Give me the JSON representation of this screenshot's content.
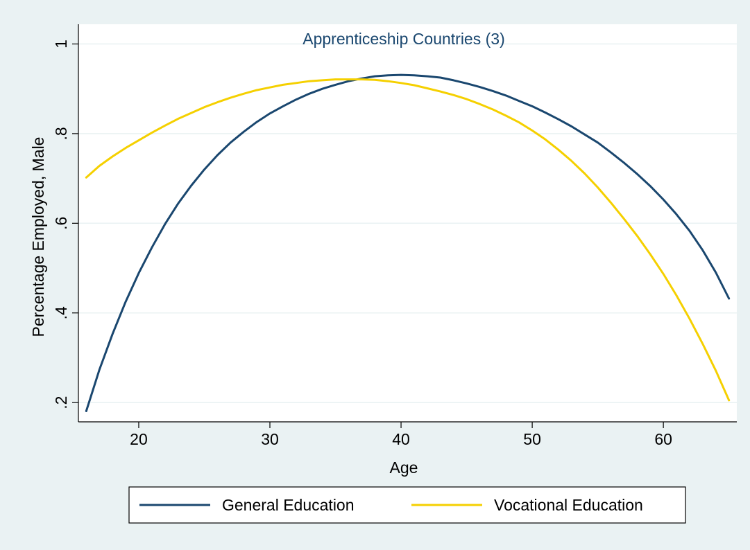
{
  "colors": {
    "background": "#eaf2f3",
    "plot_background": "#ffffff",
    "grid": "#eaf2f3",
    "axis": "#000000",
    "general": "#1a476f",
    "vocational": "#f5d000"
  },
  "chart_data": {
    "type": "line",
    "title": "Apprenticeship Countries (3)",
    "xlabel": "Age",
    "ylabel": "Percentage Employed, Male",
    "xlim": [
      15.4,
      65.6
    ],
    "ylim": [
      0.157,
      1.044
    ],
    "xticks": [
      20,
      30,
      40,
      50,
      60
    ],
    "xtick_labels": [
      "20",
      "30",
      "40",
      "50",
      "60"
    ],
    "yticks": [
      0.2,
      0.4,
      0.6,
      0.8,
      1.0
    ],
    "ytick_labels": [
      ".2",
      ".4",
      ".6",
      ".8",
      "1"
    ],
    "grid": true,
    "legend_position": "bottom",
    "x": [
      16,
      17,
      18,
      19,
      20,
      21,
      22,
      23,
      24,
      25,
      26,
      27,
      28,
      29,
      30,
      31,
      32,
      33,
      34,
      35,
      36,
      37,
      38,
      39,
      40,
      41,
      42,
      43,
      44,
      45,
      46,
      47,
      48,
      49,
      50,
      51,
      52,
      53,
      54,
      55,
      56,
      57,
      58,
      59,
      60,
      61,
      62,
      63,
      64,
      65
    ],
    "series": [
      {
        "name": "General Education",
        "color": "#1a476f",
        "values": [
          0.181,
          0.273,
          0.353,
          0.425,
          0.489,
          0.546,
          0.598,
          0.644,
          0.684,
          0.72,
          0.752,
          0.78,
          0.804,
          0.826,
          0.845,
          0.861,
          0.876,
          0.889,
          0.9,
          0.909,
          0.917,
          0.923,
          0.928,
          0.93,
          0.931,
          0.93,
          0.928,
          0.925,
          0.919,
          0.912,
          0.904,
          0.895,
          0.885,
          0.873,
          0.861,
          0.847,
          0.832,
          0.816,
          0.798,
          0.78,
          0.758,
          0.735,
          0.71,
          0.683,
          0.653,
          0.62,
          0.583,
          0.54,
          0.49,
          0.432
        ]
      },
      {
        "name": "Vocational Education",
        "color": "#f5d000",
        "values": [
          0.702,
          0.728,
          0.749,
          0.768,
          0.785,
          0.802,
          0.818,
          0.833,
          0.846,
          0.859,
          0.87,
          0.88,
          0.889,
          0.897,
          0.903,
          0.909,
          0.913,
          0.917,
          0.919,
          0.921,
          0.921,
          0.921,
          0.92,
          0.917,
          0.913,
          0.908,
          0.901,
          0.894,
          0.886,
          0.877,
          0.866,
          0.854,
          0.84,
          0.825,
          0.807,
          0.787,
          0.764,
          0.739,
          0.711,
          0.68,
          0.646,
          0.61,
          0.572,
          0.531,
          0.487,
          0.439,
          0.387,
          0.331,
          0.271,
          0.205
        ]
      }
    ]
  }
}
